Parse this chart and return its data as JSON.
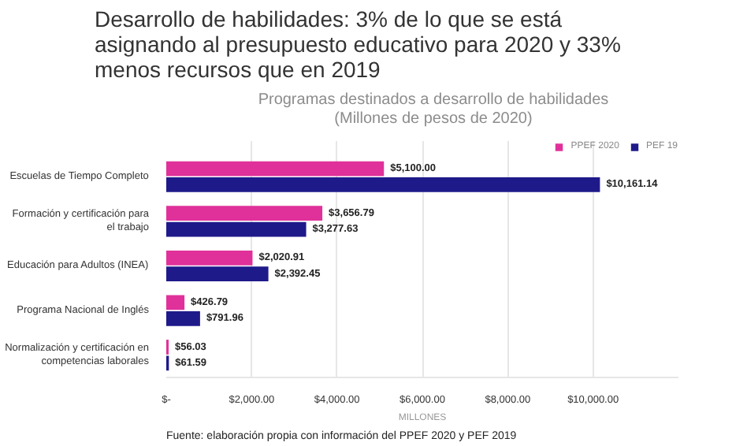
{
  "chart_data": {
    "type": "bar",
    "orientation": "horizontal",
    "title": "Desarrollo de habilidades: 3% de lo que se está asignando al presupuesto educativo para 2020 y 33% menos recursos que en 2019",
    "subtitle": "Programas destinados a desarrollo de habilidades (Millones de pesos de 2020)",
    "xlabel": "MILLONES",
    "categories": [
      "Escuelas de Tiempo Completo",
      "Formación y certificación para el trabajo",
      "Educación para Adultos (INEA)",
      "Programa Nacional de Inglés",
      "Normalización y certificación en competencias laborales"
    ],
    "series": [
      {
        "name": "PPEF 2020",
        "color": "#e0319a",
        "values": [
          5100.0,
          3656.79,
          2020.91,
          426.79,
          56.03
        ],
        "value_labels": [
          "$5,100.00",
          "$3,656.79",
          "$2,020.91",
          "$426.79",
          "$56.03"
        ]
      },
      {
        "name": "PEF 19",
        "color": "#1f1a8a",
        "values": [
          10161.14,
          3277.63,
          2392.45,
          791.96,
          61.59
        ],
        "value_labels": [
          "$10,161.14",
          "$3,277.63",
          "$2,392.45",
          "$791.96",
          "$61.59"
        ]
      }
    ],
    "xlim": [
      0,
      12000
    ],
    "xticks": [
      {
        "value": 0,
        "label": "$-"
      },
      {
        "value": 2000,
        "label": "$2,000.00"
      },
      {
        "value": 4000,
        "label": "$4,000.00"
      },
      {
        "value": 6000,
        "label": "$6,000.00"
      },
      {
        "value": 8000,
        "label": "$8,000.00"
      },
      {
        "value": 10000,
        "label": "$10,000.00"
      }
    ],
    "grid": "x",
    "legend": "top right",
    "annotations": [
      "Fuente: elaboración propia con información del PPEF 2020 y PEF 2019"
    ]
  }
}
